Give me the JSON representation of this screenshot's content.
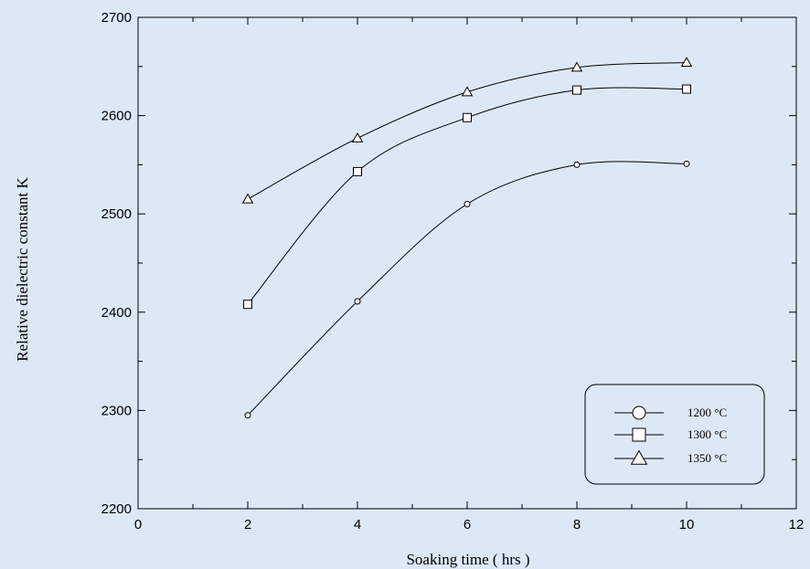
{
  "chart_data": {
    "type": "line",
    "title": "",
    "xlabel": "Soaking time ( hrs )",
    "ylabel": "Relative dielectric constant   K",
    "xlim": [
      0,
      12
    ],
    "ylim": [
      2200,
      2700
    ],
    "x_ticks": [
      0,
      2,
      4,
      6,
      8,
      10,
      12
    ],
    "x_tick_labels": [
      "0",
      "2",
      "4",
      "6",
      "8",
      "10",
      "12"
    ],
    "y_ticks": [
      2200,
      2300,
      2400,
      2500,
      2600,
      2700
    ],
    "y_tick_labels": [
      "2200",
      "2300",
      "2400",
      "2500",
      "2600",
      "2700"
    ],
    "x_minor_step": 1,
    "y_minor_step": 50,
    "grid": false,
    "legend_position": "bottom-right",
    "x": [
      2,
      4,
      6,
      8,
      10
    ],
    "series": [
      {
        "name": "1200 °C",
        "marker": "circle",
        "values": [
          2295,
          2411,
          2510,
          2550,
          2551
        ]
      },
      {
        "name": "1300 °C",
        "marker": "square",
        "values": [
          2408,
          2543,
          2598,
          2626,
          2627
        ]
      },
      {
        "name": "1350 °C",
        "marker": "triangle",
        "values": [
          2515,
          2577,
          2624,
          2649,
          2654
        ]
      }
    ],
    "colors": {
      "background": "#dde8f7",
      "line": "#000000",
      "marker_fill": "#ffffff"
    }
  }
}
